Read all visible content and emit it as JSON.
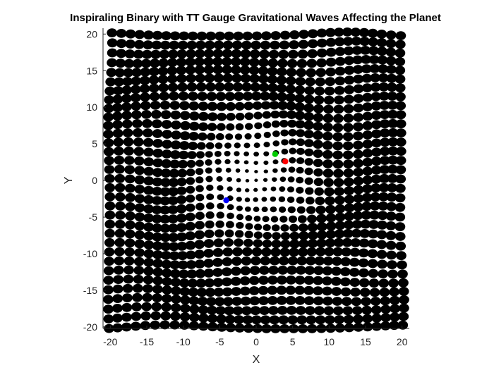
{
  "chart_data": {
    "type": "scatter",
    "title": "Inspiraling Binary with TT Gauge Gravitational Waves Affecting the Planet",
    "xlabel": "X",
    "ylabel": "Y",
    "xlim": [
      -21,
      21
    ],
    "ylim": [
      -20.2,
      20.8
    ],
    "xticks": [
      -20,
      -15,
      -10,
      -5,
      0,
      5,
      10,
      15,
      20
    ],
    "yticks": [
      -20,
      -15,
      -10,
      -5,
      0,
      5,
      10,
      15,
      20
    ],
    "grid": false,
    "legend": "none",
    "field": {
      "description_of_marks": "black disc markers on a square lattice of test particles",
      "x_range": [
        -20,
        20
      ],
      "y_range": [
        -20,
        20
      ],
      "spacing": 1.25,
      "color": "#000000"
    },
    "series": [
      {
        "x": [
          2.6
        ],
        "y": [
          3.6
        ],
        "color": "#00cc00"
      },
      {
        "x": [
          4.0
        ],
        "y": [
          2.6
        ],
        "color": "#ff0000"
      },
      {
        "x": [
          -4.1
        ],
        "y": [
          -2.7
        ],
        "color": "#0000ff"
      }
    ]
  }
}
